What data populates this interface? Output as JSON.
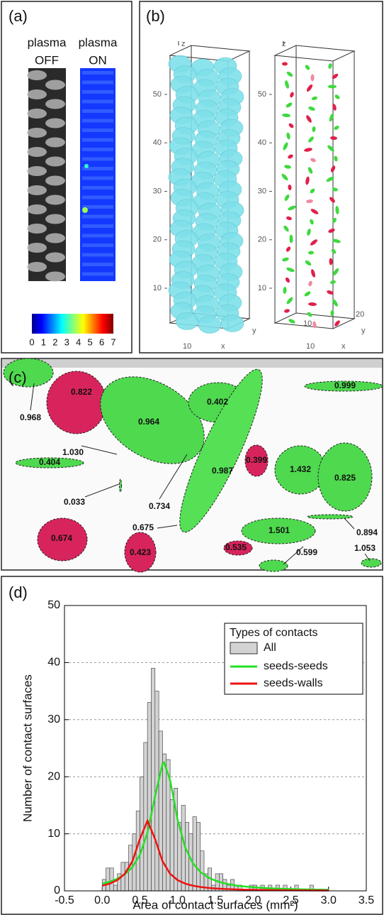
{
  "panel_a": {
    "label": "(a)",
    "off": {
      "line1": "plasma",
      "line2": "OFF"
    },
    "on": {
      "line1": "plasma",
      "line2": "ON"
    },
    "colorbar_ticks": [
      0,
      1,
      2,
      3,
      4,
      5,
      6,
      7
    ]
  },
  "panel_b": {
    "label": "(b)",
    "left": {
      "z_label": "z",
      "y_label": "y",
      "x_label": "x",
      "z_ticks": [
        50,
        40,
        30,
        20,
        10
      ],
      "x_tick": 10
    },
    "right": {
      "z_label": "z",
      "y_label": "y",
      "x_label": "x",
      "z_ticks": [
        50,
        40,
        30,
        20,
        10
      ],
      "x_tick": 10,
      "y_ticks": [
        10,
        20
      ]
    }
  },
  "panel_c": {
    "label": "(c)",
    "annotations": [
      "0.822",
      "0.968",
      "0.402",
      "0.999",
      "0.964",
      "1.030",
      "0.404",
      "0.987",
      "0.399",
      "1.432",
      "0.825",
      "0.033",
      "0.734",
      "0.675",
      "0.674",
      "0.423",
      "0.535",
      "1.501",
      "0.894",
      "0.599",
      "1.053"
    ]
  },
  "chart_data": {
    "type": "histogram",
    "panel_label": "(d)",
    "xlabel": "Area of contact surfaces (mm²)",
    "ylabel": "Number of contact surfaces",
    "legend_title": "Types of contacts",
    "hist_name": "All",
    "hist_color": "#d3d3d3",
    "bins": [
      0,
      0.05,
      0.1,
      0.15,
      0.2,
      0.25,
      0.3,
      0.35,
      0.4,
      0.45,
      0.5,
      0.55,
      0.6,
      0.65,
      0.7,
      0.75,
      0.8,
      0.85,
      0.9,
      0.95,
      1,
      1.05,
      1.1,
      1.15,
      1.2,
      1.25,
      1.3,
      1.35,
      1.4,
      1.45,
      1.5,
      1.55,
      1.6,
      1.65,
      1.7,
      1.75,
      1.8,
      1.85,
      1.9,
      1.95,
      2,
      2.05,
      2.1,
      2.15,
      2.2,
      2.25,
      2.3,
      2.35,
      2.4,
      2.45,
      2.5,
      2.55,
      2.6,
      2.65,
      2.7,
      2.75,
      2.8,
      2.85,
      2.9,
      2.95,
      3
    ],
    "counts": [
      2,
      4,
      4,
      1,
      3,
      5,
      5,
      8,
      10,
      14,
      20,
      26,
      33,
      39,
      35,
      28,
      24,
      23,
      16,
      18,
      12,
      15,
      12,
      10,
      13,
      12,
      7,
      3,
      4,
      1,
      3,
      3,
      2,
      1,
      2,
      1,
      1,
      0,
      0,
      1,
      1,
      0,
      1,
      0,
      1,
      0,
      1,
      0,
      1,
      0,
      0,
      1,
      0,
      0,
      0,
      1,
      0,
      0,
      0,
      0
    ],
    "series": [
      {
        "name": "seeds-seeds",
        "color": "#22e022",
        "x": [
          0,
          0.1,
          0.2,
          0.3,
          0.4,
          0.5,
          0.6,
          0.7,
          0.8,
          0.82,
          0.9,
          1.0,
          1.1,
          1.2,
          1.3,
          1.4,
          1.5,
          1.6,
          1.7,
          1.8,
          1.9,
          2.0,
          2.2,
          2.4,
          2.6,
          2.8,
          3.0
        ],
        "values": [
          1.27,
          1.61,
          2.12,
          2.9,
          4.16,
          6.32,
          10.18,
          16.54,
          22.28,
          22.5,
          19.4,
          12.43,
          7.6,
          4.88,
          3.33,
          2.39,
          1.79,
          1.39,
          1.11,
          0.9,
          0.75,
          0.63,
          0.46,
          0.35,
          0.28,
          0.23,
          0.19
        ]
      },
      {
        "name": "seeds-walls",
        "color": "#ee1111",
        "x": [
          0,
          0.1,
          0.2,
          0.3,
          0.4,
          0.5,
          0.6,
          0.7,
          0.8,
          0.9,
          1.0,
          1.1,
          1.2,
          1.3,
          1.4,
          1.5,
          1.6,
          1.8,
          2.0,
          2.5,
          3.0
        ],
        "values": [
          0.91,
          1.27,
          1.88,
          2.99,
          5.17,
          9.11,
          12.3,
          9.11,
          5.17,
          2.99,
          1.88,
          1.27,
          0.91,
          0.68,
          0.53,
          0.42,
          0.35,
          0.24,
          0.18,
          0.1,
          0.06
        ]
      }
    ],
    "xlim": [
      -0.5,
      3.5
    ],
    "ylim": [
      0,
      50
    ],
    "xticks": [
      -0.5,
      {
        "value": 0,
        "label": "0.0"
      },
      0.5,
      {
        "value": 1,
        "label": "1.0"
      },
      1.5,
      {
        "value": 2,
        "label": "2.0"
      },
      2.5,
      {
        "value": 3,
        "label": "3.0"
      },
      3.5
    ],
    "yticks": [
      0,
      10,
      20,
      30,
      40,
      50
    ],
    "grid": true
  }
}
